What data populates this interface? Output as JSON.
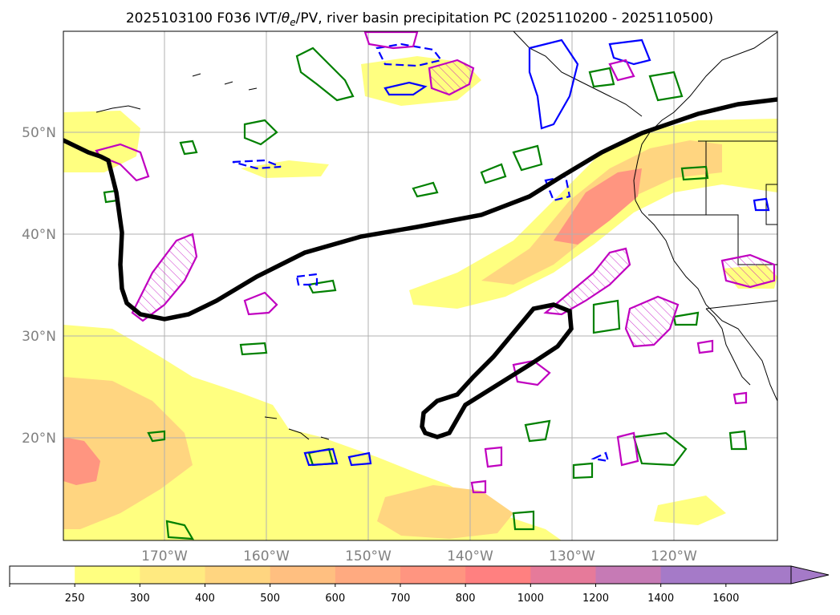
{
  "title": "2025103100 F036 IVT/θe/PV, river basin precipitation PC (2025110200 - 2025110500)",
  "title_parts": {
    "pre": "2025103100 F036 IVT/",
    "theta": "θ",
    "sub": "e",
    "post": "/PV, river basin precipitation PC (2025110200 - 2025110500)"
  },
  "map": {
    "lat_labels": [
      "50°N",
      "40°N",
      "30°N",
      "20°N"
    ],
    "lon_labels": [
      "170°W",
      "160°W",
      "150°W",
      "140°W",
      "130°W",
      "120°W"
    ]
  },
  "colorbar": {
    "ticks": [
      "250",
      "300",
      "400",
      "500",
      "600",
      "700",
      "800",
      "1000",
      "1200",
      "1400",
      "1600"
    ],
    "colors": [
      "#ffffff",
      "#ffff80",
      "#ffea80",
      "#ffd580",
      "#ffbf80",
      "#ffaa80",
      "#ff9580",
      "#ff8080",
      "#e67a9a",
      "#c67ab5",
      "#a57ac8"
    ],
    "extend_color": "#a57ac8"
  },
  "colors": {
    "ivt_light": "#ffff80",
    "ivt_mid": "#ffd580",
    "ivt_high": "#ff9580",
    "jet": "#000000",
    "pv_magenta": "#c000c0",
    "theta_green": "#008000",
    "contour_blue": "#0000ff",
    "grid": "#b0b0b0"
  }
}
